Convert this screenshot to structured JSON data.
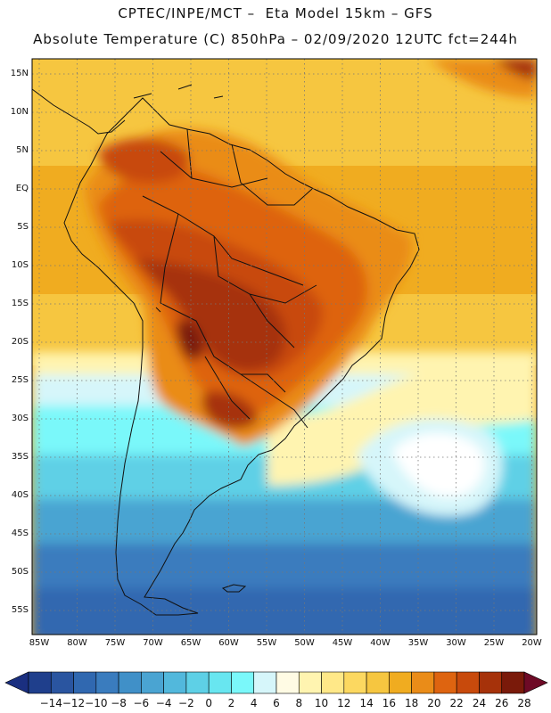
{
  "header": {
    "line1": "CPTEC/INPE/MCT –  Eta Model 15km – GFS",
    "line2": "Absolute Temperature (C) 850hPa – 02/09/2020 12UTC fct=244h"
  },
  "axes": {
    "lat_labels": [
      "15N",
      "10N",
      "5N",
      "EQ",
      "5S",
      "10S",
      "15S",
      "20S",
      "25S",
      "30S",
      "35S",
      "40S",
      "45S",
      "50S",
      "55S"
    ],
    "lon_labels": [
      "85W",
      "80W",
      "75W",
      "70W",
      "65W",
      "60W",
      "55W",
      "50W",
      "45W",
      "40W",
      "35W",
      "30W",
      "25W",
      "20W"
    ]
  },
  "colorbar": {
    "labels": [
      "-14",
      "-12",
      "-10",
      "-8",
      "-6",
      "-4",
      "-2",
      "0",
      "2",
      "4",
      "6",
      "8",
      "10",
      "12",
      "14",
      "16",
      "18",
      "20",
      "22",
      "24",
      "26",
      "28"
    ],
    "colors": [
      "#1f3f8c",
      "#2a55a0",
      "#3068b0",
      "#3a7cbe",
      "#4090c8",
      "#4aa4d2",
      "#52b8dc",
      "#5ed0e6",
      "#68e6f0",
      "#7af8fa",
      "#d6f6fa",
      "#fffbe4",
      "#fff4b0",
      "#ffe888",
      "#fcd860",
      "#f6c640",
      "#f0ac20",
      "#ea8c18",
      "#de6410",
      "#c84a0c",
      "#a6320a",
      "#7a1a0a"
    ],
    "low_arrow": "#1a2f80",
    "high_arrow": "#6e0a26"
  }
}
